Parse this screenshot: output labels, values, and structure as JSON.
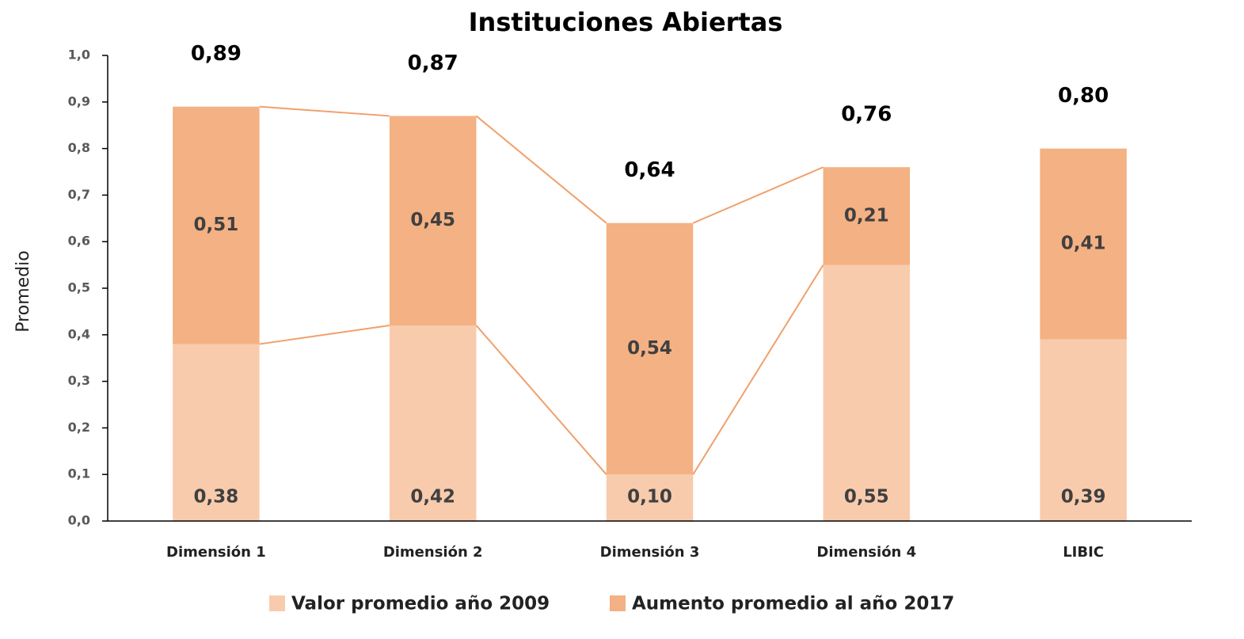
{
  "chart_data": {
    "type": "stacked_bar",
    "title": "Instituciones Abiertas",
    "y_label": "Promedio",
    "categories": [
      "Dimensión 1",
      "Dimensión 2",
      "Dimensión 3",
      "Dimensión 4",
      "LIBIC"
    ],
    "series": [
      {
        "name": "Valor promedio año 2009",
        "color": "#f8cbad",
        "values": [
          0.38,
          0.42,
          0.1,
          0.55,
          0.39
        ],
        "value_labels": [
          "0,38",
          "0,42",
          "0,10",
          "0,55",
          "0,39"
        ]
      },
      {
        "name": "Aumento promedio al año 2017",
        "color": "#f4b183",
        "values": [
          0.51,
          0.45,
          0.54,
          0.21,
          0.41
        ],
        "value_labels": [
          "0,51",
          "0,45",
          "0,54",
          "0,21",
          "0,41"
        ]
      }
    ],
    "totals": {
      "values": [
        0.89,
        0.87,
        0.64,
        0.76,
        0.8
      ],
      "value_labels": [
        "0,89",
        "0,87",
        "0,64",
        "0,76",
        "0,80"
      ]
    },
    "ylim": [
      0,
      1
    ],
    "yticks": [
      {
        "value": 0,
        "label": "0,0"
      },
      {
        "value": 0.1,
        "label": "0,1"
      },
      {
        "value": 0.2,
        "label": "0,2"
      },
      {
        "value": 0.3,
        "label": "0,3"
      },
      {
        "value": 0.4,
        "label": "0,4"
      },
      {
        "value": 0.5,
        "label": "0,5"
      },
      {
        "value": 0.6,
        "label": "0,6"
      },
      {
        "value": 0.7,
        "label": "0,7"
      },
      {
        "value": 0.8,
        "label": "0,8"
      },
      {
        "value": 0.9,
        "label": "0,9"
      },
      {
        "value": 1,
        "label": "1,0"
      }
    ],
    "connector_color": "#f0a06c",
    "grid": false
  }
}
